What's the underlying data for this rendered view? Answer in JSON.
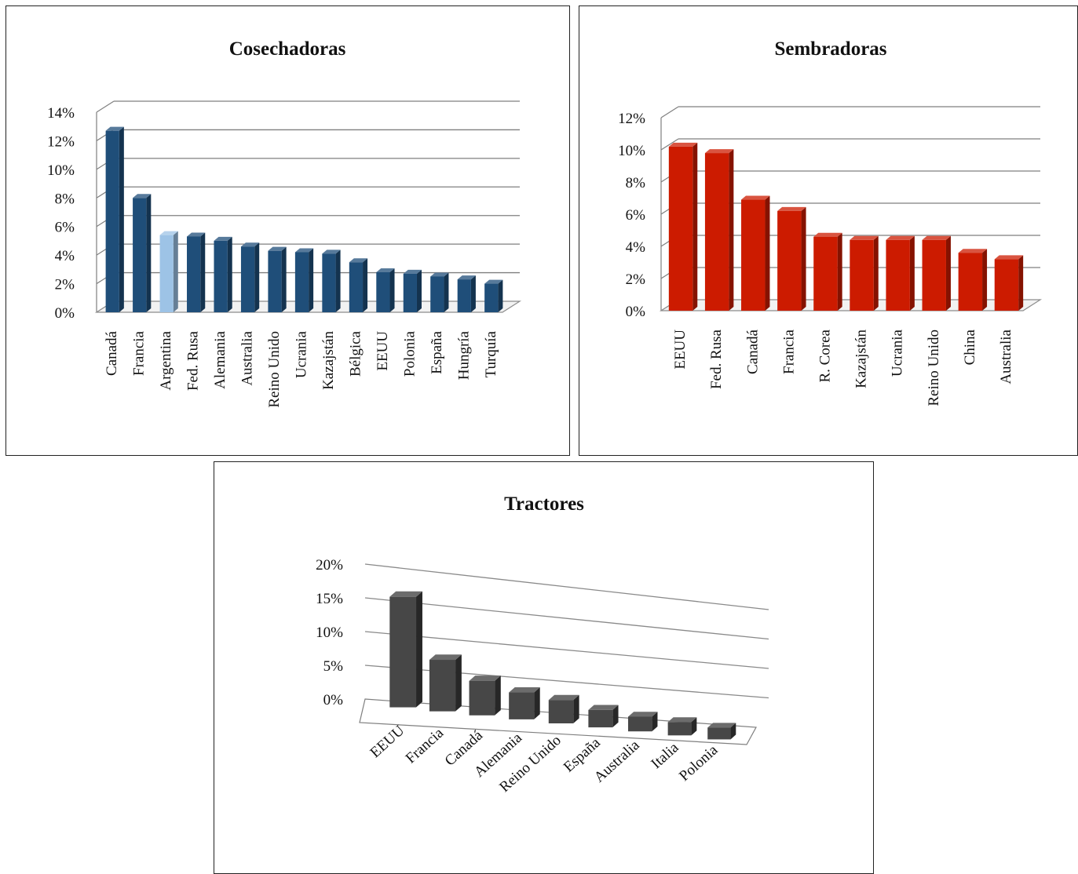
{
  "chart_data": [
    {
      "type": "bar",
      "title": "Cosechadoras",
      "categories": [
        "Canadá",
        "Francia",
        "Argentina",
        "Fed. Rusa",
        "Alemania",
        "Australia",
        "Reino Unido",
        "Ucrania",
        "Kazajstán",
        "Bélgica",
        "EEUU",
        "Polonia",
        "España",
        "Hungría",
        "Turquía"
      ],
      "values": [
        12.7,
        8.0,
        5.4,
        5.3,
        5.0,
        4.6,
        4.3,
        4.2,
        4.1,
        3.5,
        2.8,
        2.7,
        2.5,
        2.3,
        2.0
      ],
      "ylim": [
        0,
        14
      ],
      "yticks": [
        "0%",
        "2%",
        "4%",
        "6%",
        "8%",
        "10%",
        "12%",
        "14%"
      ],
      "grid": true,
      "style": "3d-column",
      "colors": {
        "bar": "#1f4e79",
        "highlight": "#9dc3e6"
      },
      "highlight_category": "Argentina"
    },
    {
      "type": "bar",
      "title": "Sembradoras",
      "categories": [
        "EEUU",
        "Fed. Rusa",
        "Canadá",
        "Francia",
        "R. Corea",
        "Kazajstán",
        "Ucrania",
        "Reino Unido",
        "China",
        "Australia"
      ],
      "values": [
        10.2,
        9.8,
        6.9,
        6.2,
        4.6,
        4.4,
        4.4,
        4.4,
        3.6,
        3.2
      ],
      "ylim": [
        0,
        12
      ],
      "yticks": [
        "0%",
        "2%",
        "4%",
        "6%",
        "8%",
        "10%",
        "12%"
      ],
      "grid": true,
      "style": "3d-column",
      "colors": {
        "bar": "#cc1b00"
      }
    },
    {
      "type": "bar",
      "title": "Tractores",
      "categories": [
        "EEUU",
        "Francia",
        "Canadá",
        "Alemania",
        "Reino Unido",
        "España",
        "Australia",
        "Italia",
        "Polonia"
      ],
      "values": [
        16.5,
        7.8,
        5.3,
        4.2,
        3.7,
        2.8,
        2.4,
        2.2,
        2.0
      ],
      "ylim": [
        0,
        20
      ],
      "yticks": [
        "0%",
        "5%",
        "10%",
        "15%",
        "20%"
      ],
      "grid": true,
      "style": "3d-column-perspective",
      "colors": {
        "bar": "#474747"
      }
    }
  ]
}
